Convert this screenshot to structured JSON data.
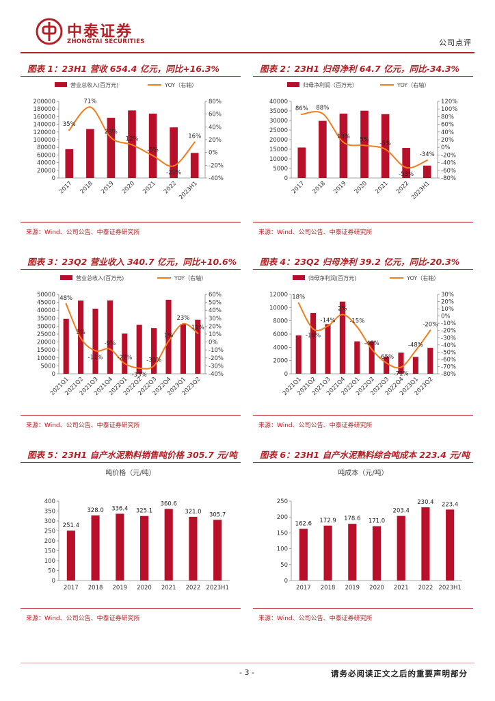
{
  "header": {
    "brand_cn": "中泰证券",
    "brand_en": "ZHONGTAI SECURITIES",
    "doc_type": "公司点评"
  },
  "footer": {
    "page": "- 3 -",
    "disclaimer": "请务必阅读正文之后的重要声明部分"
  },
  "colors": {
    "accent": "#b21f24",
    "bar": "#b8102a",
    "line": "#f07d1e",
    "axis": "#888888"
  },
  "panels": [
    {
      "title": "图表 1：23H1 营收 654.4 亿元，同比+16.3%",
      "source": "来源：Wind、公司公告、中泰证券研究所"
    },
    {
      "title": "图表 2：23H1 归母净利 64.7 亿元，同比-34.3%",
      "source": "来源：Wind、公司公告、中泰证券研究所"
    },
    {
      "title": "图表 3：23Q2 营业收入 340.7 亿元，同比+10.6%",
      "source": "来源：Wind、公司公告、中泰证券研究所"
    },
    {
      "title": "图表 4：23Q2 归母净利 39.2 亿元，同比-20.3%",
      "source": "来源：Wind、公司公告、中泰证券研究所"
    },
    {
      "title": "图表 5：23H1 自产水泥熟料销售吨价格 305.7 元/吨",
      "source": "来源：Wind、公司公告、中泰证券研究所"
    },
    {
      "title": "图表 6：23H1 自产水泥熟料综合吨成本 223.4 元/吨",
      "source": "来源：Wind、公司公告、中泰证券研究所"
    }
  ],
  "chart_data": [
    {
      "type": "bar",
      "categories": [
        "2017",
        "2018",
        "2019",
        "2020",
        "2021",
        "2022",
        "2023H1"
      ],
      "series": [
        {
          "name": "营业总收入(百万元)",
          "type": "bar",
          "axis": "left",
          "values": [
            75300,
            127800,
            157000,
            176200,
            167900,
            132000,
            65440
          ]
        },
        {
          "name": "YOY（右轴）",
          "type": "line",
          "axis": "right",
          "values": [
            35,
            71,
            23,
            12,
            -5,
            -21,
            16
          ]
        }
      ],
      "point_labels": [
        "35%",
        "71%",
        "23%",
        "12%",
        "-5%",
        "-21%",
        "16%"
      ],
      "ylim": [
        0,
        200000
      ],
      "ystep": 20000,
      "y2lim": [
        -40,
        80
      ],
      "y2step": 20,
      "y2suffix": "%",
      "legend": "top"
    },
    {
      "type": "bar",
      "categories": [
        "2017",
        "2018",
        "2019",
        "2020",
        "2021",
        "2022",
        "2023H1"
      ],
      "series": [
        {
          "name": "归母净利润（百万元）",
          "type": "bar",
          "axis": "left",
          "values": [
            15900,
            29800,
            33600,
            35100,
            33300,
            15700,
            6470
          ]
        },
        {
          "name": "YOY（右轴）",
          "type": "line",
          "axis": "right",
          "values": [
            86,
            88,
            13,
            5,
            -5,
            -53,
            -34
          ]
        }
      ],
      "point_labels": [
        "86%",
        "88%",
        "13%",
        "5%",
        "-5%",
        "-53%",
        "-34%"
      ],
      "ylim": [
        0,
        40000
      ],
      "ystep": 5000,
      "y2lim": [
        -80,
        120
      ],
      "y2step": 20,
      "y2suffix": "%",
      "legend": "top"
    },
    {
      "type": "bar",
      "categories": [
        "2021Q1",
        "2021Q2",
        "2021Q3",
        "2021Q4",
        "2022Q1",
        "2022Q2",
        "2022Q3",
        "2022Q4",
        "2023Q1",
        "2023Q2"
      ],
      "series": [
        {
          "name": "营业总收入(百万元)",
          "type": "bar",
          "axis": "left",
          "values": [
            34600,
            46100,
            41000,
            46200,
            25300,
            30800,
            28800,
            46600,
            31400,
            34070
          ]
        },
        {
          "name": "YOY（右轴）",
          "type": "line",
          "axis": "right",
          "values": [
            48,
            5,
            -11,
            -9,
            -27,
            -33,
            -30,
            1,
            23,
            11
          ]
        }
      ],
      "point_labels": [
        "48%",
        "5%",
        "-11%",
        "-9%",
        "-27%",
        "-33%",
        "-30%",
        "1%",
        "23%",
        "11%"
      ],
      "ylim": [
        0,
        50000
      ],
      "ystep": 5000,
      "y2lim": [
        -40,
        60
      ],
      "y2step": 10,
      "y2suffix": "%",
      "legend": "top"
    },
    {
      "type": "bar",
      "categories": [
        "2021Q1",
        "2021Q2",
        "2021Q3",
        "2021Q4",
        "2022Q1",
        "2022Q2",
        "2022Q3",
        "2022Q4",
        "2023Q1",
        "2023Q2"
      ],
      "series": [
        {
          "name": "归母净利润(百万元)",
          "type": "bar",
          "axis": "left",
          "values": [
            5800,
            9200,
            7500,
            10900,
            4900,
            4900,
            2600,
            3200,
            2550,
            3920
          ]
        },
        {
          "name": "YOY（右轴）",
          "type": "line",
          "axis": "right",
          "values": [
            18,
            -18,
            -14,
            2,
            -15,
            -46,
            -65,
            -71,
            -48,
            -20
          ]
        }
      ],
      "point_labels": [
        "18%",
        "-18%",
        "-14%",
        "2%",
        "-15%",
        "-46%",
        "-65%",
        "-71%",
        "-48%",
        "-20%"
      ],
      "ylim": [
        0,
        12000
      ],
      "ystep": 2000,
      "y2lim": [
        -80,
        30
      ],
      "y2step": 10,
      "y2suffix": "%",
      "legend": "top"
    },
    {
      "type": "bar",
      "title": "吨价格（元/吨）",
      "categories": [
        "2017",
        "2018",
        "2019",
        "2020",
        "2021",
        "2022",
        "2023H1"
      ],
      "series": [
        {
          "name": "吨价格（元/吨）",
          "type": "bar",
          "axis": "left",
          "values": [
            251.4,
            328.0,
            336.4,
            325.1,
            360.6,
            321.0,
            305.7
          ]
        }
      ],
      "point_labels": [
        "251.4",
        "328.0",
        "336.4",
        "325.1",
        "360.6",
        "321.0",
        "305.7"
      ],
      "ylim": [
        0,
        400
      ],
      "ystep": 50
    },
    {
      "type": "bar",
      "title": "吨成本（元/吨）",
      "categories": [
        "2017",
        "2018",
        "2019",
        "2020",
        "2021",
        "2022",
        "2023H1"
      ],
      "series": [
        {
          "name": "吨成本（元/吨）",
          "type": "bar",
          "axis": "left",
          "values": [
            162.6,
            172.9,
            178.6,
            171.0,
            203.4,
            230.4,
            223.4
          ]
        }
      ],
      "point_labels": [
        "162.6",
        "172.9",
        "178.6",
        "171.0",
        "203.4",
        "230.4",
        "223.4"
      ],
      "ylim": [
        0,
        250
      ],
      "ystep": 50
    }
  ]
}
